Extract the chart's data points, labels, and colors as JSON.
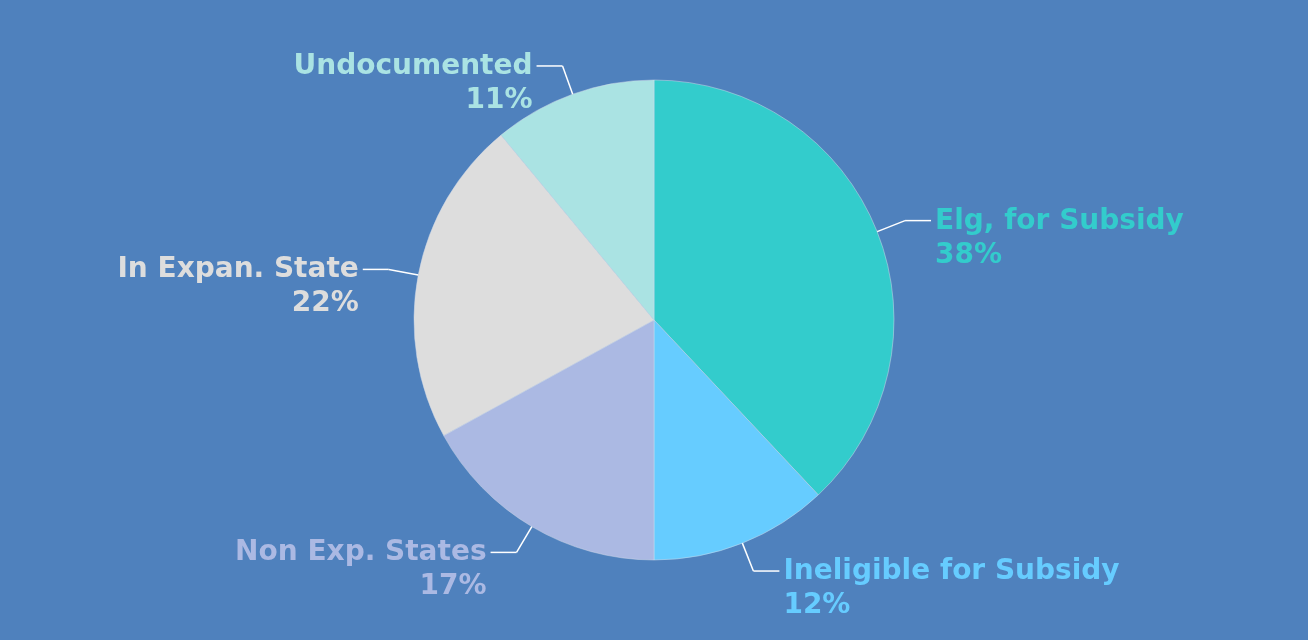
{
  "chart_data": {
    "type": "pie",
    "categories": [
      "Elg, for Subsidy",
      "Ineligible for Subsidy",
      "Non Exp. States",
      "In Expan. State",
      "Undocumented"
    ],
    "values": [
      38,
      12,
      17,
      22,
      11
    ],
    "value_labels": [
      "38%",
      "12%",
      "17%",
      "22%",
      "11%"
    ],
    "colors": [
      "#33cccc",
      "#66ccff",
      "#abb9e3",
      "#dddddd",
      "#aae3e3"
    ]
  }
}
